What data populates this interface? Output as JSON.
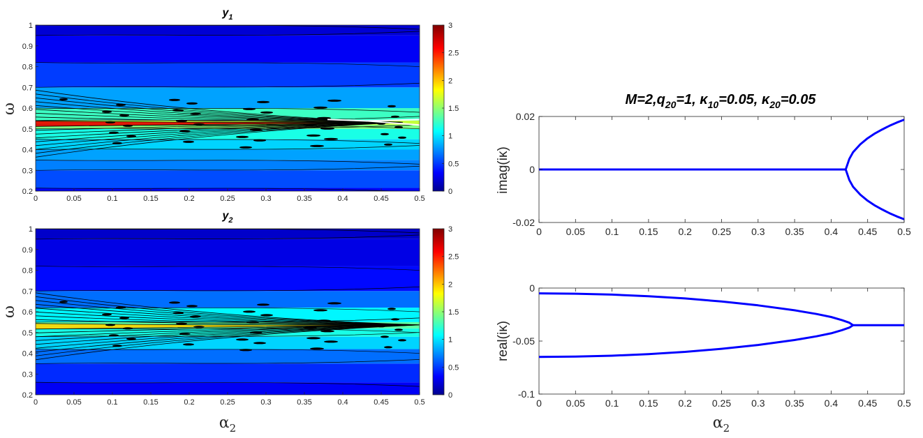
{
  "chart_data": [
    {
      "type": "heatmap",
      "title": "y",
      "title_subscript": "1",
      "xlabel": "",
      "ylabel": "ω",
      "xlim": [
        0,
        0.5
      ],
      "ylim": [
        0.2,
        1
      ],
      "xticks": [
        "0",
        "0.05",
        "0.1",
        "0.15",
        "0.2",
        "0.25",
        "0.3",
        "0.35",
        "0.4",
        "0.45",
        "0.5"
      ],
      "yticks": [
        "0.2",
        "0.3",
        "0.4",
        "0.5",
        "0.6",
        "0.7",
        "0.8",
        "0.9",
        "1"
      ],
      "colorbar": {
        "ticks": [
          "0",
          "0.5",
          "1",
          "1.5",
          "2",
          "2.5",
          "3"
        ],
        "range": [
          0,
          3
        ],
        "colormap": "jet"
      },
      "bands": [
        {
          "omega": [
            0.2,
            0.215
          ],
          "value": 0.35
        },
        {
          "omega": [
            0.215,
            0.3
          ],
          "value": 0.6
        },
        {
          "omega": [
            0.3,
            0.35
          ],
          "value": 0.75
        },
        {
          "omega": [
            0.35,
            0.4
          ],
          "value": 0.85
        },
        {
          "omega": [
            0.4,
            0.45
          ],
          "value": 1.0
        },
        {
          "omega": [
            0.45,
            0.5
          ],
          "value": 1.2
        },
        {
          "omega": [
            0.5,
            0.52
          ],
          "value": 1.5
        },
        {
          "omega": [
            0.52,
            0.54
          ],
          "value": 1.7
        },
        {
          "omega": [
            0.54,
            0.6
          ],
          "value": 1.3
        },
        {
          "omega": [
            0.6,
            0.7
          ],
          "value": 0.85
        },
        {
          "omega": [
            0.7,
            0.82
          ],
          "value": 0.55
        },
        {
          "omega": [
            0.82,
            0.95
          ],
          "value": 0.35
        },
        {
          "omega": [
            0.95,
            1.0
          ],
          "value": 0.25
        }
      ],
      "peak": {
        "alpha2": 0,
        "omega": 0.525,
        "value": 2.7
      }
    },
    {
      "type": "heatmap",
      "title": "y",
      "title_subscript": "2",
      "xlabel": "α",
      "xlabel_subscript": "2",
      "ylabel": "ω",
      "xlim": [
        0,
        0.5
      ],
      "ylim": [
        0.2,
        1
      ],
      "xticks": [
        "0",
        "0.05",
        "0.1",
        "0.15",
        "0.2",
        "0.25",
        "0.3",
        "0.35",
        "0.4",
        "0.45",
        "0.5"
      ],
      "yticks": [
        "0.2",
        "0.3",
        "0.4",
        "0.5",
        "0.6",
        "0.7",
        "0.8",
        "0.9",
        "1"
      ],
      "colorbar": {
        "ticks": [
          "0",
          "0.5",
          "1",
          "1.5",
          "2",
          "2.5",
          "3"
        ],
        "range": [
          0,
          3
        ],
        "colormap": "jet"
      },
      "bands": [
        {
          "omega": [
            0.2,
            0.26
          ],
          "value": 0.35
        },
        {
          "omega": [
            0.26,
            0.35
          ],
          "value": 0.5
        },
        {
          "omega": [
            0.35,
            0.42
          ],
          "value": 0.7
        },
        {
          "omega": [
            0.42,
            0.48
          ],
          "value": 1.0
        },
        {
          "omega": [
            0.48,
            0.52
          ],
          "value": 1.2
        },
        {
          "omega": [
            0.52,
            0.55
          ],
          "value": 1.4
        },
        {
          "omega": [
            0.55,
            0.62
          ],
          "value": 1.1
        },
        {
          "omega": [
            0.62,
            0.7
          ],
          "value": 0.7
        },
        {
          "omega": [
            0.7,
            0.82
          ],
          "value": 0.4
        },
        {
          "omega": [
            0.82,
            0.95
          ],
          "value": 0.3
        },
        {
          "omega": [
            0.95,
            1.0
          ],
          "value": 0.22
        }
      ],
      "peak": {
        "alpha2": 0,
        "omega": 0.53,
        "value": 2.0
      }
    },
    {
      "type": "line",
      "title": "M=2,q=1, κ=0.05, κ=0.05",
      "ylabel": "imag(iκ)",
      "xlabel": "",
      "xlim": [
        0,
        0.5
      ],
      "ylim": [
        -0.02,
        0.02
      ],
      "xticks": [
        "0",
        "0.05",
        "0.1",
        "0.15",
        "0.2",
        "0.25",
        "0.3",
        "0.35",
        "0.4",
        "0.45",
        "0.5"
      ],
      "yticks": [
        "-0.02",
        "0",
        "0.02"
      ],
      "series": [
        {
          "x": [
            0,
            0.42
          ],
          "y": [
            0,
            0
          ]
        },
        {
          "x": [
            0.42,
            0.425,
            0.43,
            0.44,
            0.45,
            0.46,
            0.47,
            0.48,
            0.49,
            0.5
          ],
          "y": [
            0,
            0.004,
            0.0065,
            0.0095,
            0.0118,
            0.0136,
            0.0151,
            0.0165,
            0.0177,
            0.0188
          ]
        },
        {
          "x": [
            0.42,
            0.425,
            0.43,
            0.44,
            0.45,
            0.46,
            0.47,
            0.48,
            0.49,
            0.5
          ],
          "y": [
            0,
            -0.004,
            -0.0065,
            -0.0095,
            -0.0118,
            -0.0136,
            -0.0151,
            -0.0165,
            -0.0177,
            -0.0188
          ]
        }
      ],
      "color": "#0000ff"
    },
    {
      "type": "line",
      "ylabel": "real(iκ)",
      "xlabel": "α",
      "xlabel_subscript": "2",
      "xlim": [
        0,
        0.5
      ],
      "ylim": [
        -0.1,
        0
      ],
      "xticks": [
        "0",
        "0.05",
        "0.1",
        "0.15",
        "0.2",
        "0.25",
        "0.3",
        "0.35",
        "0.4",
        "0.45",
        "0.5"
      ],
      "yticks": [
        "-0.1",
        "-0.05",
        "0"
      ],
      "series": [
        {
          "x": [
            0,
            0.05,
            0.1,
            0.15,
            0.2,
            0.25,
            0.3,
            0.35,
            0.38,
            0.4,
            0.415,
            0.425,
            0.43
          ],
          "y": [
            -0.005,
            -0.0053,
            -0.0062,
            -0.0077,
            -0.0098,
            -0.0127,
            -0.0163,
            -0.021,
            -0.0245,
            -0.0273,
            -0.0303,
            -0.0327,
            -0.035
          ]
        },
        {
          "x": [
            0,
            0.05,
            0.1,
            0.15,
            0.2,
            0.25,
            0.3,
            0.35,
            0.38,
            0.4,
            0.415,
            0.425,
            0.43
          ],
          "y": [
            -0.065,
            -0.0647,
            -0.0638,
            -0.0623,
            -0.0602,
            -0.0573,
            -0.0537,
            -0.049,
            -0.0455,
            -0.0427,
            -0.0397,
            -0.0373,
            -0.035
          ]
        },
        {
          "x": [
            0.43,
            0.5
          ],
          "y": [
            -0.035,
            -0.035
          ]
        }
      ],
      "color": "#0000ff"
    }
  ],
  "right_title_parts": {
    "a": "M=2,q",
    "sub1": "20",
    "b": "=1, ",
    "k1": "κ",
    "sub2": "10",
    "c": "=0.05, ",
    "k2": "κ",
    "sub3": "20",
    "d": "=0.05"
  },
  "labels": {
    "omega": "ω",
    "alpha": "α",
    "alpha_sub": "2",
    "imag_label": "imag(iκ)",
    "real_label": "real(iκ)",
    "y1": "y",
    "y1_sub": "1",
    "y2": "y",
    "y2_sub": "2"
  }
}
